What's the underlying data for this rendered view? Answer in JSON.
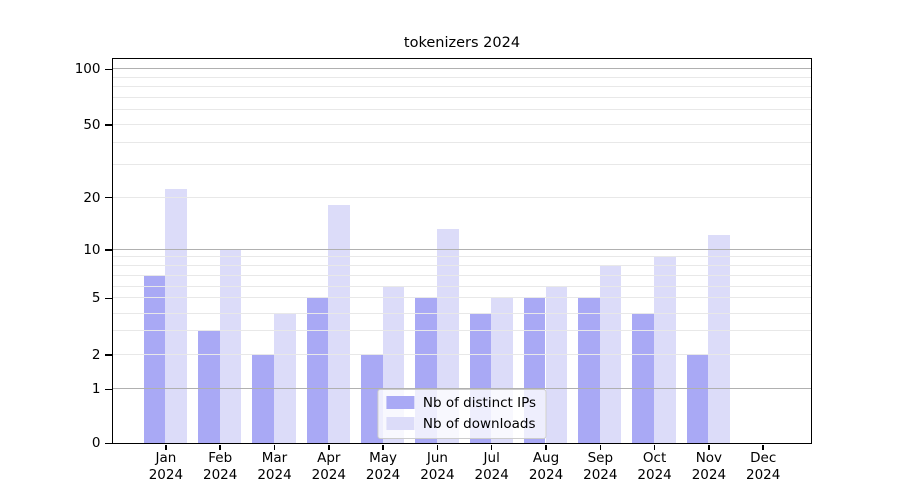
{
  "title": "tokenizers 2024",
  "chart_data": {
    "type": "bar",
    "title": "tokenizers 2024",
    "categories": [
      "Jan 2024",
      "Feb 2024",
      "Mar 2024",
      "Apr 2024",
      "May 2024",
      "Jun 2024",
      "Jul 2024",
      "Aug 2024",
      "Sep 2024",
      "Oct 2024",
      "Nov 2024",
      "Dec 2024"
    ],
    "month_labels": [
      "Jan",
      "Feb",
      "Mar",
      "Apr",
      "May",
      "Jun",
      "Jul",
      "Aug",
      "Sep",
      "Oct",
      "Nov",
      "Dec"
    ],
    "year_label": "2024",
    "series": [
      {
        "name": "Nb of distinct IPs",
        "color": "#a9a9f5",
        "values": [
          7,
          3,
          2,
          5,
          2,
          5,
          4,
          5,
          5,
          4,
          2,
          0
        ]
      },
      {
        "name": "Nb of downloads",
        "color": "#dcdcf9",
        "values": [
          22,
          10,
          4,
          18,
          6,
          13,
          5,
          6,
          8,
          9,
          12,
          0
        ]
      }
    ],
    "xlabel": "",
    "ylabel": "",
    "y_axis_scale": "log-like above 1, linear between 0 and 1 (symlog/asinh style)",
    "y_tick_values": [
      0,
      1,
      2,
      5,
      10,
      20,
      50,
      100
    ],
    "y_tick_labels": [
      "0",
      "1",
      "2",
      "5",
      "10",
      "20",
      "50",
      "100"
    ],
    "y_major_gridlines": [
      1,
      10,
      100
    ],
    "y_minor_gridlines": [
      2,
      3,
      4,
      5,
      6,
      7,
      8,
      9,
      20,
      30,
      40,
      50,
      60,
      70,
      80,
      90
    ],
    "ylim": [
      0,
      113
    ],
    "grid": true,
    "legend_position": "lower center",
    "colors": {
      "bar_dark": "#a9a9f5",
      "bar_light": "#dcdcf9",
      "major_grid": "#b0b0b0",
      "minor_grid": "#e8e8e8",
      "axis": "#000000",
      "legend_border": "#cccccc"
    }
  }
}
